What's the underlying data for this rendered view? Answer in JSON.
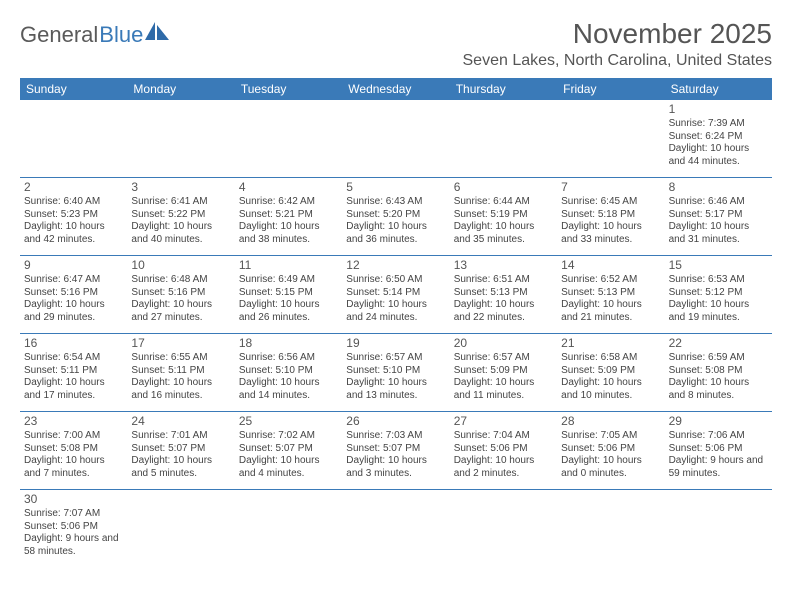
{
  "logo": {
    "text1": "General",
    "text2": "Blue"
  },
  "title": "November 2025",
  "location": "Seven Lakes, North Carolina, United States",
  "dayNames": [
    "Sunday",
    "Monday",
    "Tuesday",
    "Wednesday",
    "Thursday",
    "Friday",
    "Saturday"
  ],
  "colors": {
    "headerBg": "#3a7ab8",
    "headerText": "#ffffff",
    "text": "#444444",
    "titleText": "#555555"
  },
  "startOffset": 6,
  "days": [
    {
      "n": 1,
      "sunrise": "7:39 AM",
      "sunset": "6:24 PM",
      "dlh": 10,
      "dlm": 44
    },
    {
      "n": 2,
      "sunrise": "6:40 AM",
      "sunset": "5:23 PM",
      "dlh": 10,
      "dlm": 42
    },
    {
      "n": 3,
      "sunrise": "6:41 AM",
      "sunset": "5:22 PM",
      "dlh": 10,
      "dlm": 40
    },
    {
      "n": 4,
      "sunrise": "6:42 AM",
      "sunset": "5:21 PM",
      "dlh": 10,
      "dlm": 38
    },
    {
      "n": 5,
      "sunrise": "6:43 AM",
      "sunset": "5:20 PM",
      "dlh": 10,
      "dlm": 36
    },
    {
      "n": 6,
      "sunrise": "6:44 AM",
      "sunset": "5:19 PM",
      "dlh": 10,
      "dlm": 35
    },
    {
      "n": 7,
      "sunrise": "6:45 AM",
      "sunset": "5:18 PM",
      "dlh": 10,
      "dlm": 33
    },
    {
      "n": 8,
      "sunrise": "6:46 AM",
      "sunset": "5:17 PM",
      "dlh": 10,
      "dlm": 31
    },
    {
      "n": 9,
      "sunrise": "6:47 AM",
      "sunset": "5:16 PM",
      "dlh": 10,
      "dlm": 29
    },
    {
      "n": 10,
      "sunrise": "6:48 AM",
      "sunset": "5:16 PM",
      "dlh": 10,
      "dlm": 27
    },
    {
      "n": 11,
      "sunrise": "6:49 AM",
      "sunset": "5:15 PM",
      "dlh": 10,
      "dlm": 26
    },
    {
      "n": 12,
      "sunrise": "6:50 AM",
      "sunset": "5:14 PM",
      "dlh": 10,
      "dlm": 24
    },
    {
      "n": 13,
      "sunrise": "6:51 AM",
      "sunset": "5:13 PM",
      "dlh": 10,
      "dlm": 22
    },
    {
      "n": 14,
      "sunrise": "6:52 AM",
      "sunset": "5:13 PM",
      "dlh": 10,
      "dlm": 21
    },
    {
      "n": 15,
      "sunrise": "6:53 AM",
      "sunset": "5:12 PM",
      "dlh": 10,
      "dlm": 19
    },
    {
      "n": 16,
      "sunrise": "6:54 AM",
      "sunset": "5:11 PM",
      "dlh": 10,
      "dlm": 17
    },
    {
      "n": 17,
      "sunrise": "6:55 AM",
      "sunset": "5:11 PM",
      "dlh": 10,
      "dlm": 16
    },
    {
      "n": 18,
      "sunrise": "6:56 AM",
      "sunset": "5:10 PM",
      "dlh": 10,
      "dlm": 14
    },
    {
      "n": 19,
      "sunrise": "6:57 AM",
      "sunset": "5:10 PM",
      "dlh": 10,
      "dlm": 13
    },
    {
      "n": 20,
      "sunrise": "6:57 AM",
      "sunset": "5:09 PM",
      "dlh": 10,
      "dlm": 11
    },
    {
      "n": 21,
      "sunrise": "6:58 AM",
      "sunset": "5:09 PM",
      "dlh": 10,
      "dlm": 10
    },
    {
      "n": 22,
      "sunrise": "6:59 AM",
      "sunset": "5:08 PM",
      "dlh": 10,
      "dlm": 8
    },
    {
      "n": 23,
      "sunrise": "7:00 AM",
      "sunset": "5:08 PM",
      "dlh": 10,
      "dlm": 7
    },
    {
      "n": 24,
      "sunrise": "7:01 AM",
      "sunset": "5:07 PM",
      "dlh": 10,
      "dlm": 5
    },
    {
      "n": 25,
      "sunrise": "7:02 AM",
      "sunset": "5:07 PM",
      "dlh": 10,
      "dlm": 4
    },
    {
      "n": 26,
      "sunrise": "7:03 AM",
      "sunset": "5:07 PM",
      "dlh": 10,
      "dlm": 3
    },
    {
      "n": 27,
      "sunrise": "7:04 AM",
      "sunset": "5:06 PM",
      "dlh": 10,
      "dlm": 2
    },
    {
      "n": 28,
      "sunrise": "7:05 AM",
      "sunset": "5:06 PM",
      "dlh": 10,
      "dlm": 0
    },
    {
      "n": 29,
      "sunrise": "7:06 AM",
      "sunset": "5:06 PM",
      "dlh": 9,
      "dlm": 59
    },
    {
      "n": 30,
      "sunrise": "7:07 AM",
      "sunset": "5:06 PM",
      "dlh": 9,
      "dlm": 58
    }
  ]
}
